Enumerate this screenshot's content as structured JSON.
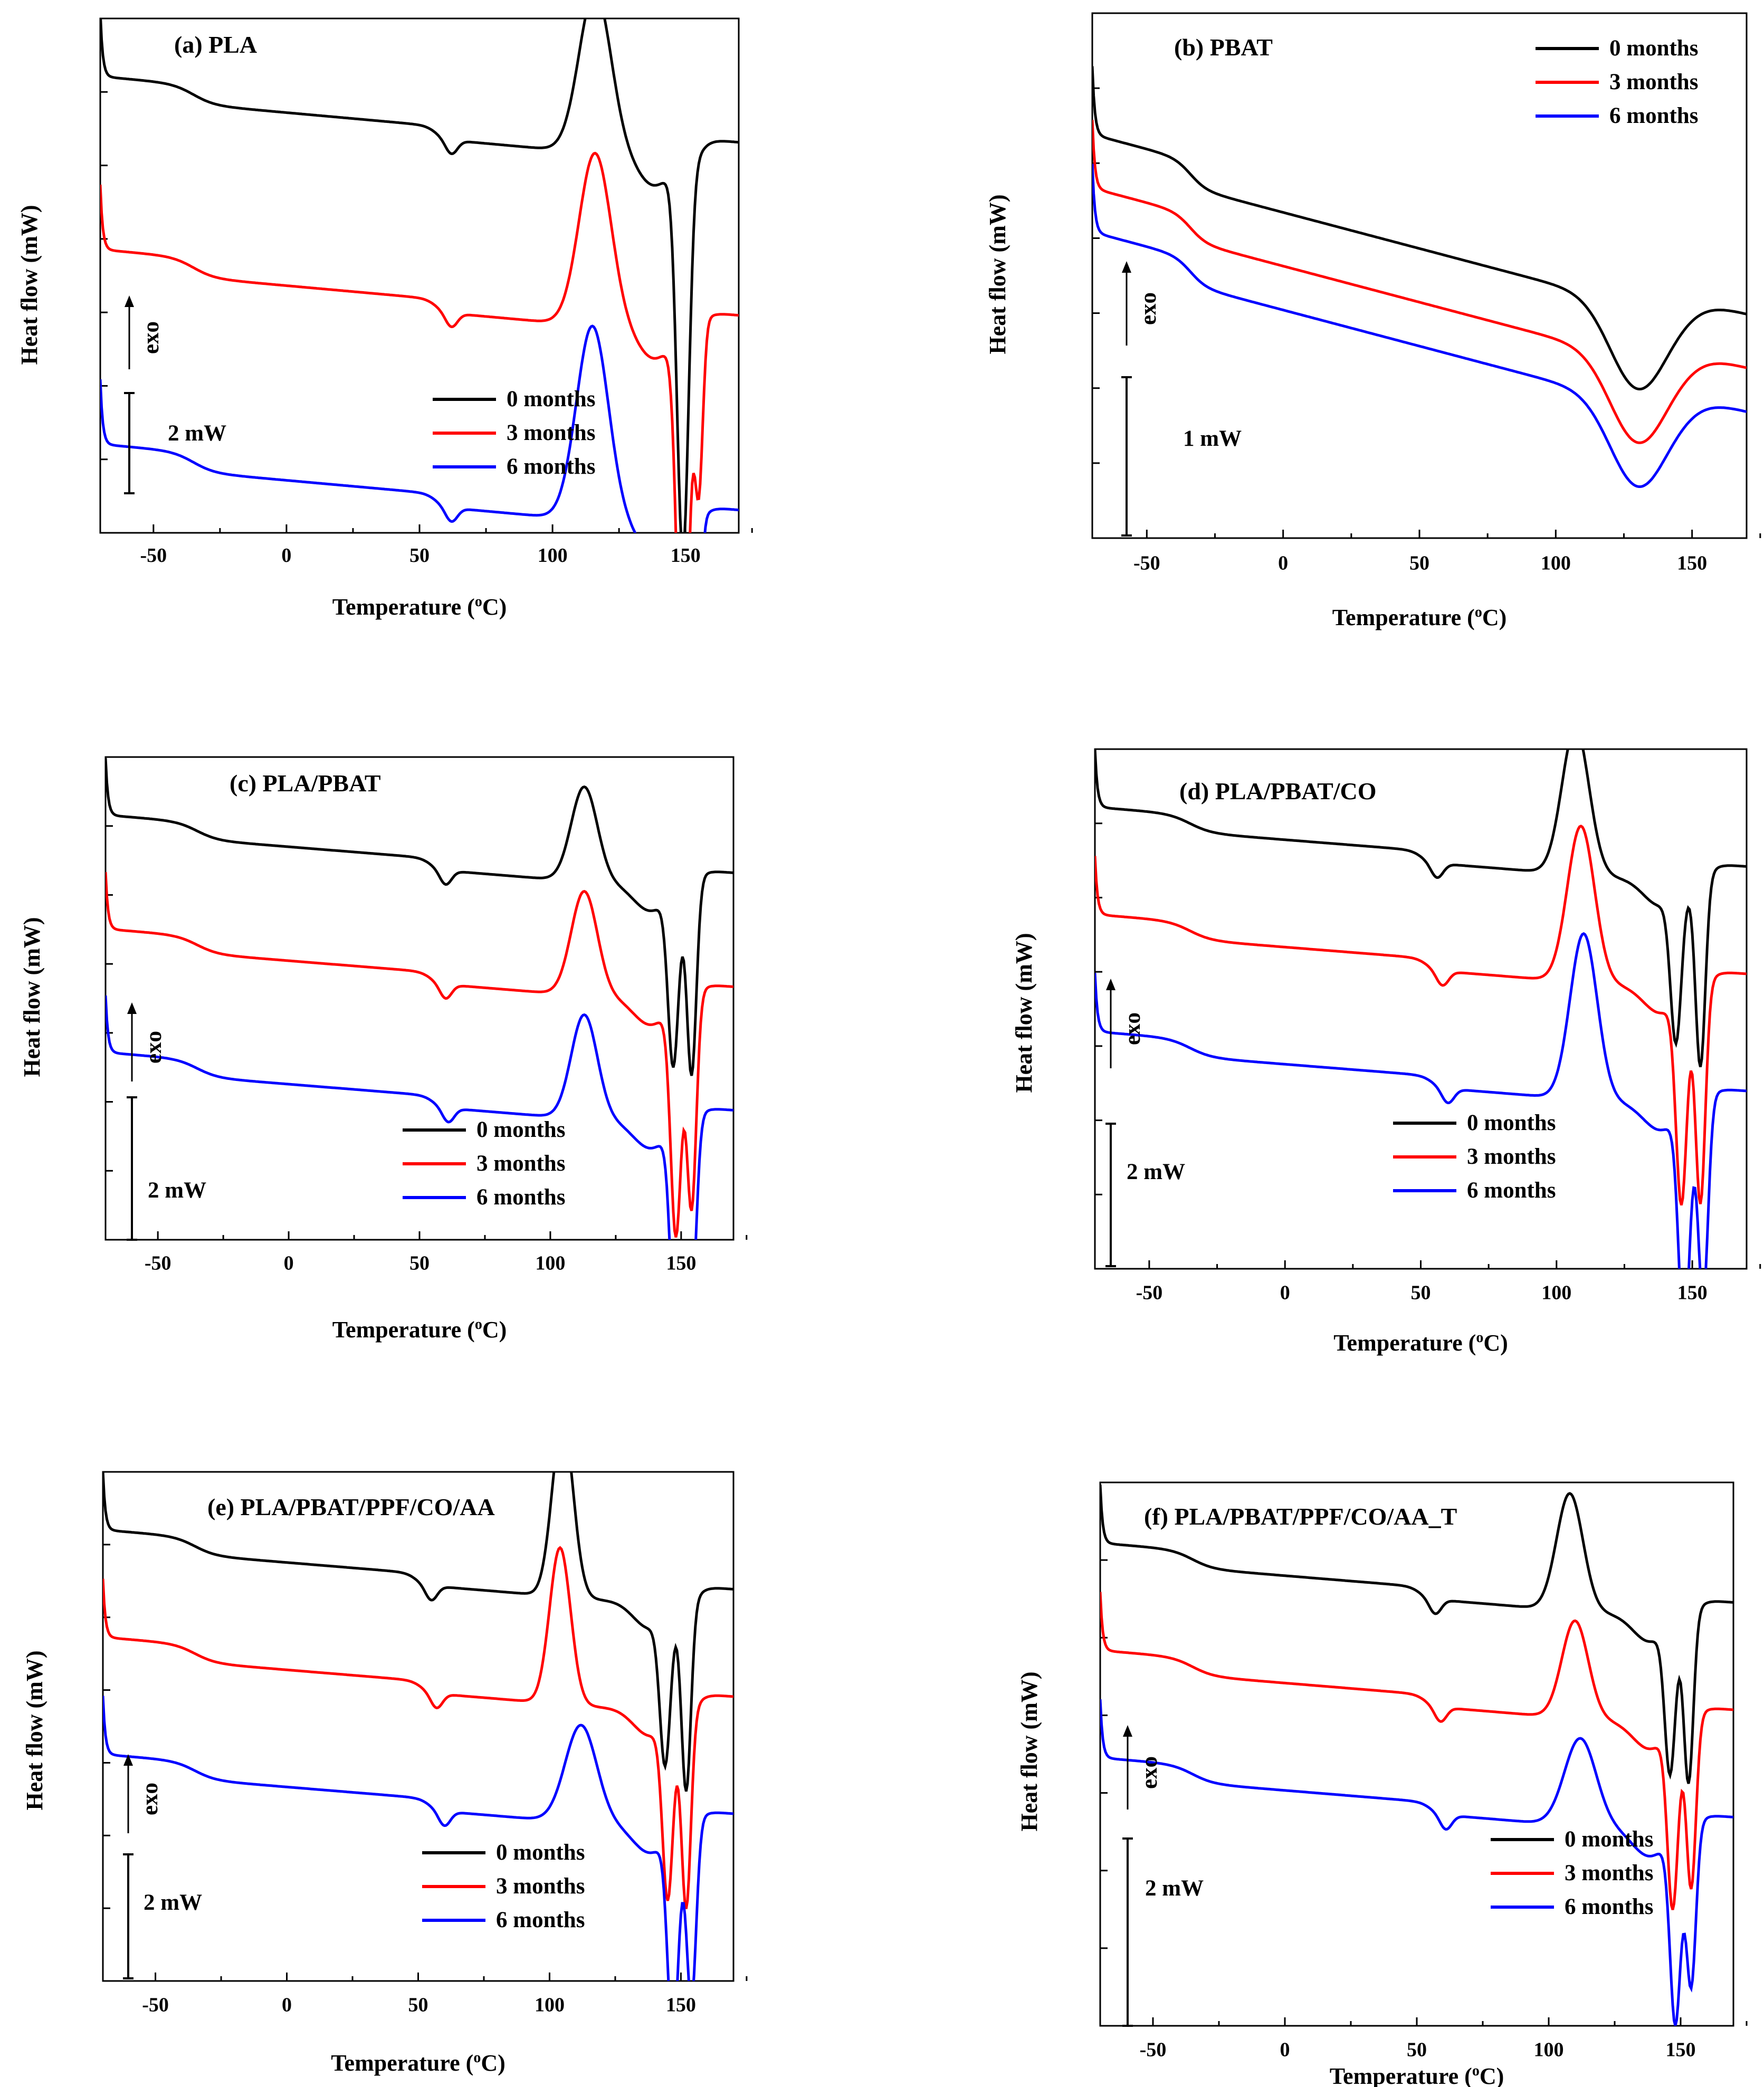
{
  "chart_data": [
    {
      "type": "line",
      "title": "(a)   PLA",
      "xlabel": "Temperature (oC)",
      "ylabel": "Heat flow (mW)",
      "xlim": [
        -70,
        170
      ],
      "xticks": [
        -50,
        0,
        50,
        100,
        150
      ],
      "exo_label": "exo",
      "scale_label": "2 mW",
      "legend_position": "lower-right",
      "series": [
        {
          "name": "0 months",
          "color": "#000000",
          "offset": 0,
          "tg": 62,
          "tg_depth": 0.13,
          "cold_cryst": {
            "x": 116,
            "h": 1.5,
            "w": 6
          },
          "melt": [
            {
              "x": 149,
              "d": 3.6,
              "w": 2.2
            }
          ],
          "end": 0.0
        },
        {
          "name": "3 months",
          "color": "#ff0000",
          "offset": -1.6,
          "tg": 62,
          "tg_depth": 0.13,
          "cold_cryst": {
            "x": 116,
            "h": 1.6,
            "w": 6
          },
          "melt": [
            {
              "x": 149,
              "d": 3.6,
              "w": 2.2
            },
            {
              "x": 155,
              "d": 1.5,
              "w": 1.5
            }
          ],
          "end": 0.0
        },
        {
          "name": "6 months",
          "color": "#0000ff",
          "offset": -3.4,
          "tg": 62,
          "tg_depth": 0.13,
          "cold_cryst": {
            "x": 115,
            "h": 1.8,
            "w": 6
          },
          "melt": [
            {
              "x": 148,
              "d": 3.6,
              "w": 2.2
            },
            {
              "x": 154,
              "d": 1.7,
              "w": 1.5
            }
          ],
          "end": 0.0
        }
      ]
    },
    {
      "type": "line",
      "title": "(b)   PBAT",
      "xlabel": "Temperature (oC)",
      "ylabel": "Heat flow (mW)",
      "xlim": [
        -70,
        170
      ],
      "xticks": [
        -50,
        0,
        50,
        100,
        150
      ],
      "exo_label": "exo",
      "scale_label": "1 mW",
      "legend_position": "top-right",
      "series": [
        {
          "name": "0 months",
          "color": "#000000",
          "offset": 0,
          "tg": -34
        },
        {
          "name": "3 months",
          "color": "#ff0000",
          "offset": -0.55,
          "tg": -34
        },
        {
          "name": "6 months",
          "color": "#0000ff",
          "offset": -1.0,
          "tg": -34
        }
      ]
    },
    {
      "type": "line",
      "title": "(c)    PLA/PBAT",
      "xlabel": "Temperature (oC)",
      "ylabel": "Heat flow (mW)",
      "xlim": [
        -70,
        170
      ],
      "xticks": [
        -50,
        0,
        50,
        100,
        150
      ],
      "exo_label": "exo",
      "scale_label": "2 mW",
      "legend_position": "lower-right",
      "series": [
        {
          "name": "0 months",
          "color": "#000000",
          "offset": 0,
          "tg": 60,
          "tg_depth": 0.15,
          "cold_cryst": {
            "x": 113,
            "h": 1.0,
            "w": 5
          },
          "melt": [
            {
              "x": 147,
              "d": 1.8,
              "w": 2
            },
            {
              "x": 154,
              "d": 2.0,
              "w": 1.8
            }
          ],
          "end": -0.1
        },
        {
          "name": "3 months",
          "color": "#ff0000",
          "offset": -1.2,
          "tg": 60,
          "tg_depth": 0.15,
          "cold_cryst": {
            "x": 113,
            "h": 1.1,
            "w": 5
          },
          "melt": [
            {
              "x": 148,
              "d": 2.4,
              "w": 2
            },
            {
              "x": 154,
              "d": 2.2,
              "w": 1.8
            }
          ],
          "end": -0.1
        },
        {
          "name": "6 months",
          "color": "#0000ff",
          "offset": -2.5,
          "tg": 61,
          "tg_depth": 0.15,
          "cold_cryst": {
            "x": 113,
            "h": 1.1,
            "w": 5
          },
          "melt": [
            {
              "x": 148,
              "d": 2.3,
              "w": 2
            },
            {
              "x": 154,
              "d": 1.9,
              "w": 1.8
            }
          ],
          "end": -0.1
        }
      ]
    },
    {
      "type": "line",
      "title": "(d)   PLA/PBAT/CO",
      "xlabel": "Temperature (oC)",
      "ylabel": "Heat flow (mW)",
      "xlim": [
        -70,
        170
      ],
      "xticks": [
        -50,
        0,
        50,
        100,
        150
      ],
      "exo_label": "exo",
      "scale_label": "2 mW",
      "legend_position": "lower-right",
      "series": [
        {
          "name": "0 months",
          "color": "#000000",
          "offset": 0,
          "tg": 56,
          "tg_depth": 0.15,
          "cold_cryst": {
            "x": 107,
            "h": 1.5,
            "w": 5
          },
          "melt": [
            {
              "x": 144,
              "d": 1.5,
              "w": 2
            },
            {
              "x": 153,
              "d": 1.9,
              "w": 1.8
            }
          ],
          "end": -0.1
        },
        {
          "name": "3 months",
          "color": "#ff0000",
          "offset": -1.1,
          "tg": 58,
          "tg_depth": 0.15,
          "cold_cryst": {
            "x": 109,
            "h": 1.6,
            "w": 5
          },
          "melt": [
            {
              "x": 146,
              "d": 2.1,
              "w": 2
            },
            {
              "x": 153,
              "d": 2.2,
              "w": 1.8
            }
          ],
          "end": -0.1
        },
        {
          "name": "6 months",
          "color": "#0000ff",
          "offset": -2.3,
          "tg": 60,
          "tg_depth": 0.15,
          "cold_cryst": {
            "x": 110,
            "h": 1.7,
            "w": 5
          },
          "melt": [
            {
              "x": 147,
              "d": 2.3,
              "w": 2
            },
            {
              "x": 154,
              "d": 2.0,
              "w": 1.8
            }
          ],
          "end": -0.1
        }
      ]
    },
    {
      "type": "line",
      "title": "(e)   PLA/PBAT/PPF/CO/AA",
      "xlabel": "Temperature (oC)",
      "ylabel": "Heat flow (mW)",
      "xlim": [
        -70,
        170
      ],
      "xticks": [
        -50,
        0,
        50,
        100,
        150
      ],
      "exo_label": "exo",
      "scale_label": "2 mW",
      "legend_position": "lower-right",
      "series": [
        {
          "name": "0 months",
          "color": "#000000",
          "offset": 0,
          "tg": 55,
          "tg_depth": 0.15,
          "cold_cryst": {
            "x": 105,
            "h": 1.8,
            "w": 4
          },
          "melt": [
            {
              "x": 144,
              "d": 1.5,
              "w": 2
            },
            {
              "x": 152,
              "d": 1.9,
              "w": 1.8
            }
          ],
          "end": -0.1
        },
        {
          "name": "3 months",
          "color": "#ff0000",
          "offset": -1.1,
          "tg": 57,
          "tg_depth": 0.15,
          "cold_cryst": {
            "x": 104,
            "h": 1.6,
            "w": 4
          },
          "melt": [
            {
              "x": 145,
              "d": 1.8,
              "w": 2
            },
            {
              "x": 152,
              "d": 2.0,
              "w": 1.8
            }
          ],
          "end": -0.1
        },
        {
          "name": "6 months",
          "color": "#0000ff",
          "offset": -2.3,
          "tg": 60,
          "tg_depth": 0.15,
          "cold_cryst": {
            "x": 112,
            "h": 1.0,
            "w": 6
          },
          "melt": [
            {
              "x": 147,
              "d": 2.1,
              "w": 2
            },
            {
              "x": 154,
              "d": 1.8,
              "w": 1.8
            }
          ],
          "end": -0.1
        }
      ]
    },
    {
      "type": "line",
      "title": "(f)   PLA/PBAT/PPF/CO/AA_T",
      "xlabel": "Temperature (oC)",
      "ylabel": "Heat flow (mW)",
      "xlim": [
        -70,
        170
      ],
      "xticks": [
        -50,
        0,
        50,
        100,
        150
      ],
      "exo_label": "exo",
      "scale_label": "2 mW",
      "legend_position": "lower-right",
      "series": [
        {
          "name": "0 months",
          "color": "#000000",
          "offset": 0,
          "tg": 57,
          "tg_depth": 0.15,
          "cold_cryst": {
            "x": 108,
            "h": 1.2,
            "w": 5
          },
          "melt": [
            {
              "x": 146,
              "d": 1.5,
              "w": 2
            },
            {
              "x": 153,
              "d": 1.7,
              "w": 1.8
            }
          ],
          "end": -0.1
        },
        {
          "name": "3 months",
          "color": "#ff0000",
          "offset": -1.1,
          "tg": 59,
          "tg_depth": 0.15,
          "cold_cryst": {
            "x": 110,
            "h": 1.0,
            "w": 5
          },
          "melt": [
            {
              "x": 147,
              "d": 1.8,
              "w": 2
            },
            {
              "x": 154,
              "d": 1.7,
              "w": 1.8
            }
          ],
          "end": -0.1
        },
        {
          "name": "6 months",
          "color": "#0000ff",
          "offset": -2.2,
          "tg": 61,
          "tg_depth": 0.15,
          "cold_cryst": {
            "x": 112,
            "h": 0.9,
            "w": 6
          },
          "melt": [
            {
              "x": 148,
              "d": 1.9,
              "w": 2
            },
            {
              "x": 154,
              "d": 1.6,
              "w": 1.8
            }
          ],
          "end": -0.1
        }
      ]
    }
  ]
}
